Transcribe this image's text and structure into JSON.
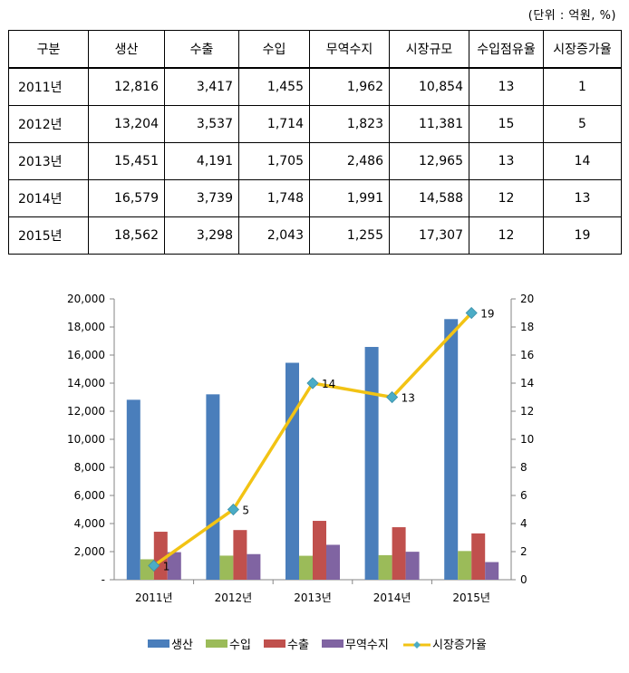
{
  "unit_note": "(단위 : 억원, %)",
  "table": {
    "headers": [
      "구분",
      "생산",
      "수출",
      "수입",
      "무역수지",
      "시장규모",
      "수입점유율",
      "시장증가율"
    ],
    "rows": [
      [
        "2011년",
        "12,816",
        "3,417",
        "1,455",
        "1,962",
        "10,854",
        "13",
        "1"
      ],
      [
        "2012년",
        "13,204",
        "3,537",
        "1,714",
        "1,823",
        "11,381",
        "15",
        "5"
      ],
      [
        "2013년",
        "15,451",
        "4,191",
        "1,705",
        "2,486",
        "12,965",
        "13",
        "14"
      ],
      [
        "2014년",
        "16,579",
        "3,739",
        "1,748",
        "1,991",
        "14,588",
        "12",
        "13"
      ],
      [
        "2015년",
        "18,562",
        "3,298",
        "2,043",
        "1,255",
        "17,307",
        "12",
        "19"
      ]
    ]
  },
  "chart_data": {
    "type": "bar",
    "categories": [
      "2011년",
      "2012년",
      "2013년",
      "2014년",
      "2015년"
    ],
    "series": [
      {
        "name": "생산",
        "type": "bar",
        "axis": "left",
        "color": "#4a7ebb",
        "values": [
          12816,
          13204,
          15451,
          16579,
          18562
        ]
      },
      {
        "name": "수입",
        "type": "bar",
        "axis": "left",
        "color": "#9bbb59",
        "values": [
          1455,
          1714,
          1705,
          1748,
          2043
        ]
      },
      {
        "name": "수출",
        "type": "bar",
        "axis": "left",
        "color": "#c0504d",
        "values": [
          3417,
          3537,
          4191,
          3739,
          3298
        ]
      },
      {
        "name": "무역수지",
        "type": "bar",
        "axis": "left",
        "color": "#8064a2",
        "values": [
          1962,
          1823,
          2486,
          1991,
          1255
        ]
      },
      {
        "name": "시장증가율",
        "type": "line",
        "axis": "right",
        "color": "#f2c314",
        "marker_color": "#4bacc6",
        "values": [
          1,
          5,
          14,
          13,
          19
        ],
        "data_labels": [
          "1",
          "5",
          "14",
          "13",
          "19"
        ]
      }
    ],
    "y_left": {
      "min": 0,
      "max": 20000,
      "step": 2000,
      "ticks": [
        "-",
        "2,000",
        "4,000",
        "6,000",
        "8,000",
        "10,000",
        "12,000",
        "14,000",
        "16,000",
        "18,000",
        "20,000"
      ]
    },
    "y_right": {
      "min": 0,
      "max": 20,
      "step": 2,
      "ticks": [
        "0",
        "2",
        "4",
        "6",
        "8",
        "10",
        "12",
        "14",
        "16",
        "18",
        "20"
      ]
    },
    "grid": false,
    "legend": "bottom"
  }
}
